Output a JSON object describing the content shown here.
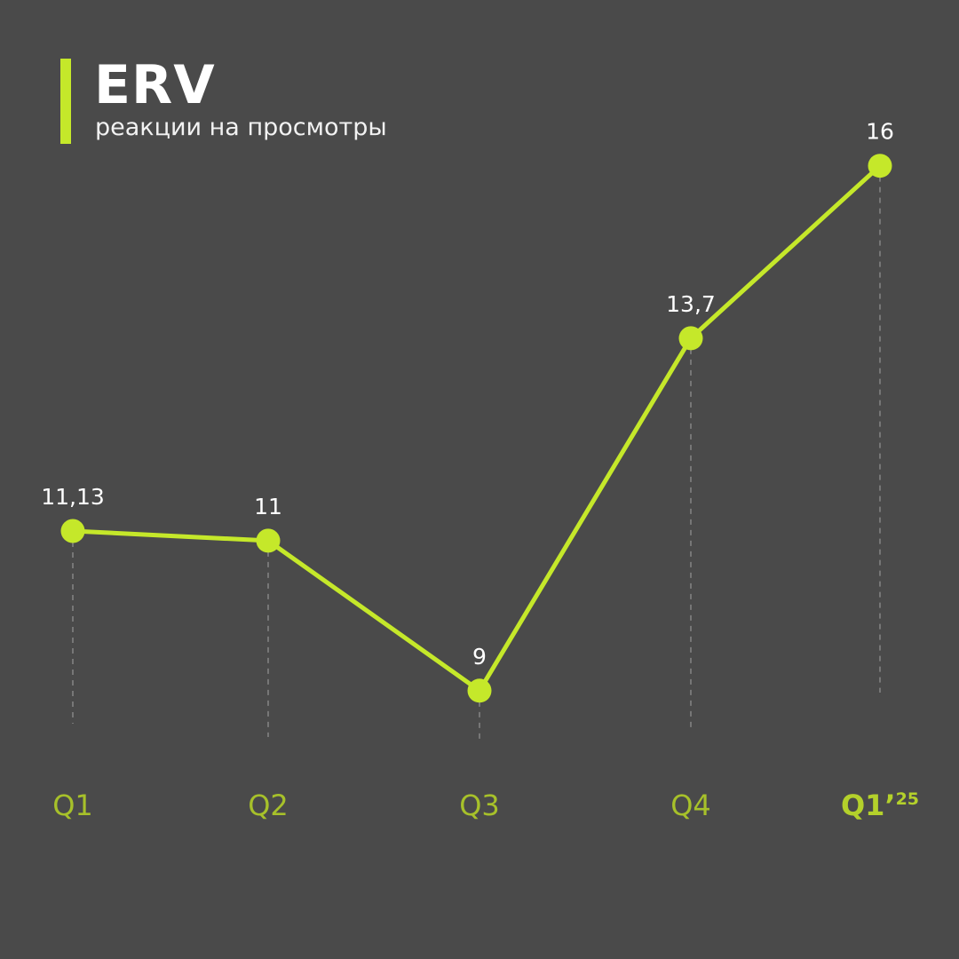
{
  "header": {
    "title": "ERV",
    "subtitle": "реакции на просмотры"
  },
  "colors": {
    "background": "#4a4a4a",
    "accent": "#c5e82a",
    "tick_label": "#a7c12a",
    "value_label": "#ffffff",
    "guide": "#8a8a8a"
  },
  "chart_data": {
    "type": "line",
    "categories": [
      "Q1",
      "Q2",
      "Q3",
      "Q4",
      "Q1’25"
    ],
    "category_labels": [
      {
        "main": "Q1",
        "sup": ""
      },
      {
        "main": "Q2",
        "sup": ""
      },
      {
        "main": "Q3",
        "sup": ""
      },
      {
        "main": "Q4",
        "sup": ""
      },
      {
        "main": "Q1’",
        "sup": "25",
        "bold": true
      }
    ],
    "series": [
      {
        "values": [
          11.13,
          11,
          9,
          13.7,
          16
        ],
        "labels": [
          "11,13",
          "11",
          "9",
          "13,7",
          "16"
        ]
      }
    ],
    "title": "ERV",
    "subtitle": "реакции на просмотры",
    "xlabel": "",
    "ylabel": "",
    "ylim": [
      4.83,
      17.5
    ],
    "grid": false,
    "legend": "none",
    "drop_lines": true,
    "markers": true,
    "data_labels": "above"
  }
}
